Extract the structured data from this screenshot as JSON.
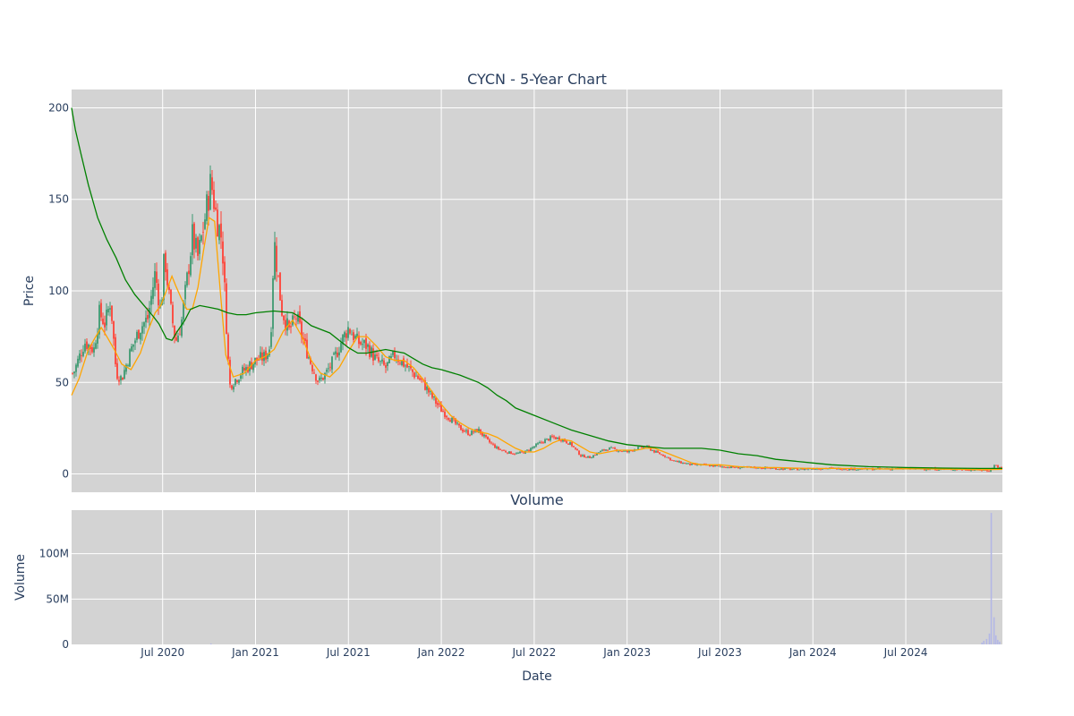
{
  "chart_data": [
    {
      "type": "candlestick",
      "title": "CYCN - 5-Year Chart",
      "ylabel": "Price",
      "ylim": [
        -10,
        210
      ],
      "y_ticks": [
        0,
        50,
        100,
        150,
        200
      ],
      "x_ticks": [
        "Jul 2020",
        "Jan 2021",
        "Jul 2021",
        "Jan 2022",
        "Jul 2022",
        "Jan 2023",
        "Jul 2023",
        "Jan 2024",
        "Jul 2024"
      ],
      "x_tick_values": [
        2020.5,
        2021.0,
        2021.5,
        2022.0,
        2022.5,
        2023.0,
        2023.5,
        2024.0,
        2024.5
      ],
      "xlim": [
        2020.01,
        2025.02
      ],
      "grid": true,
      "colors": {
        "up": "#3d9970",
        "down": "#ff4136",
        "ma_short": "#ffa500",
        "ma_long": "#008000",
        "background": "#d3d3d3",
        "grid": "#ffffff"
      },
      "close_series": {
        "x": [
          2020.02,
          2020.08,
          2020.13,
          2020.16,
          2020.19,
          2020.22,
          2020.25,
          2020.28,
          2020.33,
          2020.38,
          2020.42,
          2020.46,
          2020.49,
          2020.51,
          2020.54,
          2020.57,
          2020.6,
          2020.63,
          2020.66,
          2020.69,
          2020.72,
          2020.76,
          2020.79,
          2020.82,
          2020.86,
          2020.92,
          2021.0,
          2021.05,
          2021.08,
          2021.1,
          2021.14,
          2021.18,
          2021.22,
          2021.26,
          2021.3,
          2021.34,
          2021.38,
          2021.42,
          2021.46,
          2021.5,
          2021.55,
          2021.6,
          2021.65,
          2021.7,
          2021.75,
          2021.8,
          2021.85,
          2021.9,
          2021.95,
          2022.0,
          2022.05,
          2022.1,
          2022.15,
          2022.2,
          2022.25,
          2022.3,
          2022.35,
          2022.4,
          2022.45,
          2022.5,
          2022.55,
          2022.6,
          2022.65,
          2022.7,
          2022.75,
          2022.8,
          2022.85,
          2022.9,
          2022.95,
          2023.0,
          2023.05,
          2023.1,
          2023.15,
          2023.2,
          2023.25,
          2023.3,
          2023.35,
          2023.4,
          2023.5,
          2023.6,
          2023.7,
          2023.8,
          2023.9,
          2024.0,
          2024.1,
          2024.2,
          2024.3,
          2024.4,
          2024.5,
          2024.6,
          2024.7,
          2024.8,
          2024.9,
          2024.95,
          2024.98,
          2025.01
        ],
        "values": [
          55,
          72,
          68,
          88,
          82,
          95,
          55,
          52,
          68,
          80,
          85,
          110,
          88,
          120,
          92,
          72,
          82,
          105,
          130,
          118,
          135,
          160,
          140,
          128,
          48,
          55,
          62,
          64,
          70,
          128,
          90,
          78,
          86,
          72,
          60,
          50,
          55,
          62,
          72,
          80,
          72,
          70,
          62,
          58,
          65,
          60,
          55,
          50,
          42,
          35,
          30,
          25,
          22,
          24,
          18,
          14,
          12,
          11,
          12,
          15,
          18,
          20,
          19,
          16,
          10,
          9,
          12,
          14,
          13,
          12,
          14,
          15,
          12,
          10,
          7,
          6,
          5,
          5,
          4,
          3.5,
          3.5,
          3,
          2.5,
          3,
          3,
          2.8,
          2.6,
          2.8,
          2.8,
          2.8,
          2.6,
          2.5,
          2.2,
          1.8,
          5,
          3
        ]
      },
      "ma_short": {
        "x": [
          2020.01,
          2020.05,
          2020.1,
          2020.14,
          2020.17,
          2020.2,
          2020.24,
          2020.28,
          2020.33,
          2020.38,
          2020.42,
          2020.46,
          2020.49,
          2020.52,
          2020.55,
          2020.57,
          2020.6,
          2020.63,
          2020.66,
          2020.69,
          2020.72,
          2020.75,
          2020.78,
          2020.81,
          2020.84,
          2020.88,
          2020.94,
          2021.0,
          2021.05,
          2021.1,
          2021.15,
          2021.2,
          2021.25,
          2021.3,
          2021.35,
          2021.4,
          2021.45,
          2021.5,
          2021.55,
          2021.6,
          2021.65,
          2021.7,
          2021.75,
          2021.8,
          2021.85,
          2021.9,
          2021.95,
          2022.0,
          2022.05,
          2022.1,
          2022.15,
          2022.2,
          2022.25,
          2022.3,
          2022.35,
          2022.4,
          2022.45,
          2022.5,
          2022.55,
          2022.6,
          2022.65,
          2022.7,
          2022.75,
          2022.8,
          2022.85,
          2022.9,
          2022.95,
          2023.0,
          2023.05,
          2023.1,
          2023.15,
          2023.2,
          2023.25,
          2023.3,
          2023.35,
          2023.4,
          2023.5,
          2023.6,
          2023.7,
          2023.8,
          2023.9,
          2024.0,
          2024.1,
          2024.2,
          2024.3,
          2024.4,
          2024.5,
          2024.6,
          2024.7,
          2024.8,
          2024.9,
          2025.02
        ],
        "values": [
          43,
          52,
          68,
          75,
          80,
          75,
          68,
          60,
          57,
          66,
          78,
          88,
          92,
          100,
          108,
          103,
          96,
          90,
          90,
          102,
          122,
          140,
          138,
          100,
          65,
          53,
          55,
          62,
          64,
          68,
          78,
          84,
          75,
          62,
          55,
          53,
          58,
          67,
          75,
          75,
          70,
          64,
          62,
          62,
          58,
          52,
          45,
          38,
          32,
          28,
          25,
          23,
          22,
          20,
          17,
          14,
          12,
          12,
          14,
          17,
          19,
          18,
          15,
          12,
          11,
          12,
          13,
          13,
          13,
          14,
          14,
          12,
          10,
          8,
          6,
          5,
          5,
          4,
          3.5,
          3.5,
          3.2,
          3,
          3,
          3,
          2.8,
          2.7,
          2.8,
          2.8,
          2.6,
          2.5,
          2.3,
          2.5
        ]
      },
      "ma_long": {
        "x": [
          2020.01,
          2020.03,
          2020.06,
          2020.1,
          2020.15,
          2020.2,
          2020.25,
          2020.3,
          2020.35,
          2020.4,
          2020.45,
          2020.48,
          2020.5,
          2020.52,
          2020.55,
          2020.58,
          2020.62,
          2020.65,
          2020.7,
          2020.75,
          2020.8,
          2020.85,
          2020.9,
          2020.95,
          2021.0,
          2021.1,
          2021.2,
          2021.25,
          2021.3,
          2021.35,
          2021.4,
          2021.45,
          2021.5,
          2021.55,
          2021.6,
          2021.65,
          2021.7,
          2021.75,
          2021.8,
          2021.85,
          2021.9,
          2021.95,
          2022.0,
          2022.1,
          2022.2,
          2022.25,
          2022.3,
          2022.35,
          2022.4,
          2022.5,
          2022.6,
          2022.7,
          2022.8,
          2022.9,
          2023.0,
          2023.1,
          2023.2,
          2023.3,
          2023.4,
          2023.5,
          2023.6,
          2023.7,
          2023.8,
          2023.9,
          2024.0,
          2024.1,
          2024.3,
          2024.5,
          2024.7,
          2024.9,
          2025.02
        ],
        "values": [
          200,
          188,
          175,
          158,
          140,
          128,
          118,
          106,
          98,
          92,
          86,
          82,
          78,
          74,
          73,
          78,
          84,
          90,
          92,
          91,
          90,
          88,
          87,
          87,
          88,
          89,
          88,
          85,
          81,
          79,
          77,
          73,
          69,
          66,
          66,
          67,
          68,
          67,
          66,
          63,
          60,
          58,
          57,
          54,
          50,
          47,
          43,
          40,
          36,
          32,
          28,
          24,
          21,
          18,
          16,
          15,
          14,
          14,
          14,
          13,
          11,
          10,
          8,
          7,
          6,
          5,
          4,
          3.5,
          3.2,
          3,
          3
        ]
      }
    },
    {
      "type": "bar",
      "title": "Volume",
      "ylabel": "Volume",
      "xlabel": "Date",
      "ylim": [
        0,
        148000000
      ],
      "y_ticks": [
        0,
        50000000,
        100000000
      ],
      "y_tick_labels": [
        "0",
        "50M",
        "100M"
      ],
      "x_ticks": [
        "Jul 2020",
        "Jan 2021",
        "Jul 2021",
        "Jan 2022",
        "Jul 2022",
        "Jan 2023",
        "Jul 2023",
        "Jan 2024",
        "Jul 2024"
      ],
      "x_tick_values": [
        2020.5,
        2021.0,
        2021.5,
        2022.0,
        2022.5,
        2023.0,
        2023.5,
        2024.0,
        2024.5
      ],
      "xlim": [
        2020.01,
        2025.02
      ],
      "grid": true,
      "colors": {
        "bar": "#b3b7e6",
        "background": "#d3d3d3",
        "grid": "#ffffff"
      },
      "x": [
        2020.76,
        2024.91,
        2024.92,
        2024.935,
        2024.95,
        2024.96,
        2024.975,
        2024.985,
        2024.995,
        2025.005
      ],
      "values": [
        1000000,
        2000000,
        4000000,
        6000000,
        12000000,
        145000000,
        30000000,
        10000000,
        5000000,
        3000000
      ]
    }
  ]
}
